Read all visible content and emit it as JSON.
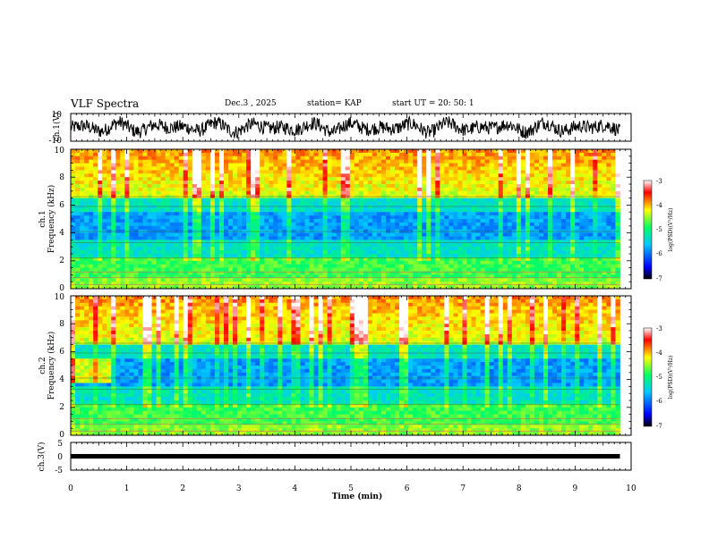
{
  "header": {
    "title": "VLF Spectra",
    "date": "Dec.3 , 2025",
    "station": "station= KAP",
    "start": "start UT = 20: 50: 1"
  },
  "chart_data": {
    "type": "heatmap",
    "title": "VLF Spectra",
    "x_axis": {
      "label": "Time (min)",
      "range": [
        0,
        10
      ],
      "ticks": [
        "0",
        "1",
        "2",
        "3",
        "4",
        "5",
        "6",
        "7",
        "8",
        "9",
        "10"
      ]
    },
    "panels": [
      {
        "name": "ch1-waveform",
        "type": "line",
        "ylabel": "ch.1(V)",
        "ylim": [
          -10,
          10
        ],
        "ytick_labels": [
          "10",
          "-10"
        ],
        "amplitude_range": [
          -10,
          10
        ],
        "data_end_min": 9.8
      },
      {
        "name": "ch1-spectrogram",
        "type": "heatmap",
        "ylabel_top": "ch.1",
        "ylabel": "Frequency (kHz)",
        "ylim": [
          0,
          10
        ],
        "ytick_labels": [
          "0",
          "2",
          "4",
          "6",
          "8",
          "10"
        ],
        "data_end_min": 9.8,
        "colorbar": {
          "label": "log(PSD)(V²/Hz)",
          "range": [
            -7,
            -3
          ],
          "tick_labels": [
            "-3",
            "-4",
            "-5",
            "-6",
            "-7"
          ]
        }
      },
      {
        "name": "ch2-spectrogram",
        "type": "heatmap",
        "ylabel_top": "ch.2",
        "ylabel": "Frequency (kHz)",
        "ylim": [
          0,
          10
        ],
        "ytick_labels": [
          "0",
          "2",
          "4",
          "6",
          "8",
          "10"
        ],
        "data_end_min": 9.8,
        "colorbar": {
          "label": "log(PSD)(V²/Hz)",
          "range": [
            -7,
            -3
          ],
          "tick_labels": [
            "-3",
            "-4",
            "-5",
            "-6",
            "-7"
          ]
        }
      },
      {
        "name": "ch3-waveform",
        "type": "line",
        "ylabel": "ch.3(V)",
        "ylim": [
          -5,
          5
        ],
        "ytick_labels": [
          "5",
          "0",
          "-5"
        ],
        "amplitude_range": [
          -0.5,
          0.5
        ],
        "data_end_min": 9.8
      }
    ]
  },
  "colors": {
    "axis": "#000000",
    "waveform": "#000000",
    "colormap": [
      "#000000",
      "#0000ff",
      "#00c8ff",
      "#00ff64",
      "#ffff00",
      "#ff0000",
      "#ffffff"
    ]
  }
}
